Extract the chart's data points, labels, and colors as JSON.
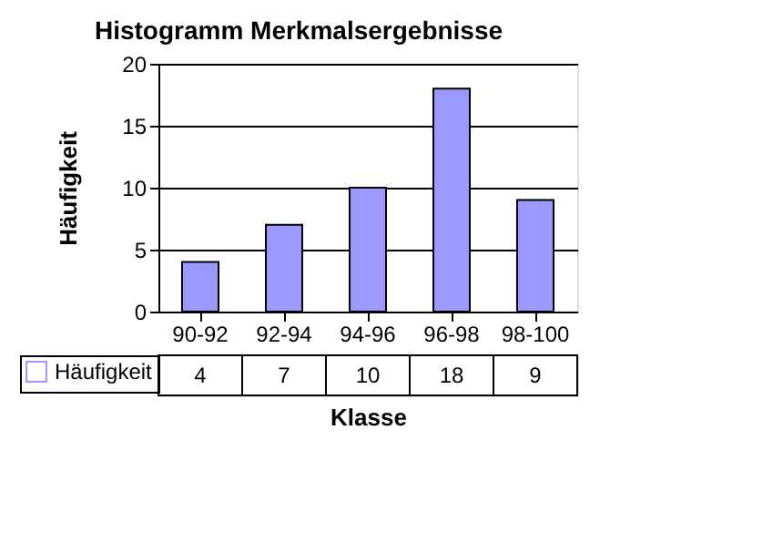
{
  "chart_data": {
    "type": "bar",
    "title": "Histogramm Merkmalsergebnisse",
    "xlabel": "Klasse",
    "ylabel": "Häufigkeit",
    "categories": [
      "90-92",
      "92-94",
      "94-96",
      "96-98",
      "98-100"
    ],
    "series": [
      {
        "name": "Häufigkeit",
        "color": "#9999ff",
        "values": [
          4,
          7,
          10,
          18,
          9
        ]
      }
    ],
    "ylim": [
      0,
      20
    ],
    "yticks": [
      0,
      5,
      10,
      15,
      20
    ],
    "grid": "y",
    "legend": "bottom left",
    "data_labels": true
  }
}
